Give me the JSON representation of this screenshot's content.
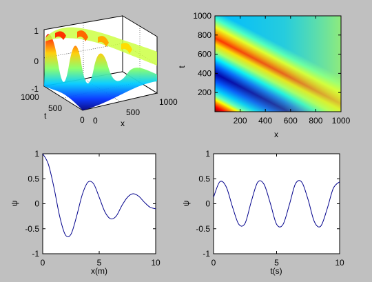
{
  "chart_data": [
    {
      "type": "surface",
      "position": "top-left",
      "xlabel": "x",
      "ylabel": "t",
      "x_ticks": [
        "0",
        "500",
        "1000"
      ],
      "t_ticks": [
        "0",
        "500",
        "1000"
      ],
      "z_ticks": [
        "-1",
        "0",
        "1"
      ],
      "xlim": [
        0,
        1000
      ],
      "tlim": [
        0,
        1000
      ],
      "zlim": [
        -1,
        1
      ],
      "colormap": "jet",
      "grid": true
    },
    {
      "type": "heatmap",
      "position": "top-right",
      "xlabel": "x",
      "ylabel": "t",
      "x_ticks": [
        "200",
        "400",
        "600",
        "800",
        "1000"
      ],
      "y_ticks": [
        "200",
        "400",
        "600",
        "800",
        "1000"
      ],
      "xlim": [
        0,
        1000
      ],
      "ylim": [
        0,
        1000
      ],
      "colormap": "jet",
      "pattern": "diagonal traveling wave bands"
    },
    {
      "type": "line",
      "position": "bottom-left",
      "xlabel": "x(m)",
      "ylabel": "ψ",
      "xlim": [
        0,
        10
      ],
      "ylim": [
        -1,
        1
      ],
      "x_ticks": [
        "0",
        "5",
        "10"
      ],
      "y_ticks": [
        "1",
        "0.5",
        "0",
        "-0.5",
        "-1"
      ],
      "series": [
        {
          "color": "#00008b",
          "x": [
            0,
            0.5,
            1,
            1.5,
            2,
            2.5,
            3,
            3.5,
            4,
            4.5,
            5,
            5.5,
            6,
            6.5,
            7,
            7.5,
            8,
            8.5,
            9,
            9.5,
            10
          ],
          "y": [
            1.0,
            0.79,
            0.32,
            -0.25,
            -0.62,
            -0.61,
            -0.25,
            0.18,
            0.43,
            0.4,
            0.13,
            -0.16,
            -0.3,
            -0.25,
            -0.04,
            0.13,
            0.2,
            0.15,
            0.03,
            -0.07,
            -0.1
          ]
        }
      ]
    },
    {
      "type": "line",
      "position": "bottom-right",
      "xlabel": "t(s)",
      "ylabel": "ψ",
      "xlim": [
        0,
        10
      ],
      "ylim": [
        -1,
        1
      ],
      "x_ticks": [
        "0",
        "5",
        "10"
      ],
      "y_ticks": [
        "1",
        "0.5",
        "0",
        "-0.5",
        "-1"
      ],
      "series": [
        {
          "color": "#00008b",
          "x": [
            0,
            0.5,
            1,
            1.5,
            2,
            2.5,
            3,
            3.5,
            4,
            4.5,
            5,
            5.5,
            6,
            6.5,
            7,
            7.5,
            8,
            8.5,
            9,
            9.5,
            10
          ],
          "y": [
            0.13,
            0.44,
            0.34,
            -0.06,
            -0.41,
            -0.39,
            0.05,
            0.43,
            0.39,
            0.01,
            -0.41,
            -0.42,
            -0.03,
            0.4,
            0.43,
            0.08,
            -0.36,
            -0.45,
            -0.11,
            0.31,
            0.44
          ]
        }
      ]
    }
  ]
}
